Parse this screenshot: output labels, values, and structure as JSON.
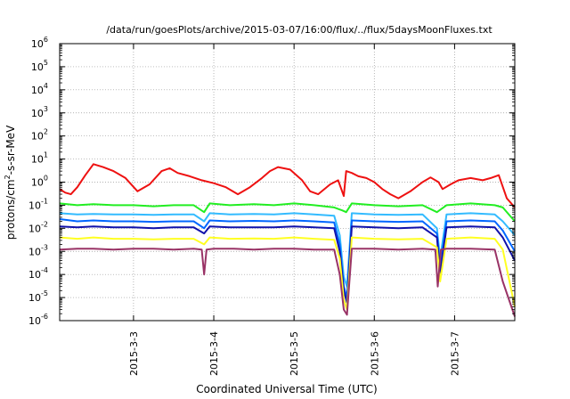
{
  "chart_data": {
    "type": "line",
    "title": "/data/run/goesPlots/archive/2015-03-07/16:00/flux/../flux/5daysMoonFluxes.txt",
    "xlabel": "Coordinated Universal Time (UTC)",
    "ylabel_base": "protons/cm",
    "ylabel_sup": "2",
    "ylabel_rest": "-s-sr-MeV",
    "y_scale": "log",
    "ylim": [
      1e-06,
      1000000.0
    ],
    "xlim": [
      2.08,
      7.75
    ],
    "x_unit": "day of March 2015",
    "grid": "dotted",
    "legend": "none",
    "y_ticks": [
      {
        "value": 1e-06,
        "base": "10",
        "exp": "-6"
      },
      {
        "value": 1e-05,
        "base": "10",
        "exp": "-5"
      },
      {
        "value": 0.0001,
        "base": "10",
        "exp": "-4"
      },
      {
        "value": 0.001,
        "base": "10",
        "exp": "-3"
      },
      {
        "value": 0.01,
        "base": "10",
        "exp": "-2"
      },
      {
        "value": 0.1,
        "base": "10",
        "exp": "-1"
      },
      {
        "value": 1.0,
        "base": "10",
        "exp": "0"
      },
      {
        "value": 10.0,
        "base": "10",
        "exp": "1"
      },
      {
        "value": 100.0,
        "base": "10",
        "exp": "2"
      },
      {
        "value": 1000.0,
        "base": "10",
        "exp": "3"
      },
      {
        "value": 10000.0,
        "base": "10",
        "exp": "4"
      },
      {
        "value": 100000.0,
        "base": "10",
        "exp": "5"
      },
      {
        "value": 1000000.0,
        "base": "10",
        "exp": "6"
      }
    ],
    "x_ticks": [
      {
        "value": 3,
        "label": "2015-3-3"
      },
      {
        "value": 4,
        "label": "2015-3-4"
      },
      {
        "value": 5,
        "label": "2015-3-5"
      },
      {
        "value": 6,
        "label": "2015-3-6"
      },
      {
        "value": 7,
        "label": "2015-3-7"
      }
    ],
    "series": [
      {
        "color": "#ee1111",
        "x": [
          2.08,
          2.15,
          2.22,
          2.3,
          2.4,
          2.5,
          2.62,
          2.75,
          2.9,
          3.05,
          3.2,
          3.35,
          3.45,
          3.55,
          3.7,
          3.85,
          4.0,
          4.15,
          4.3,
          4.45,
          4.6,
          4.7,
          4.8,
          4.95,
          5.1,
          5.2,
          5.3,
          5.45,
          5.55,
          5.62,
          5.65,
          5.72,
          5.8,
          5.9,
          6.0,
          6.1,
          6.2,
          6.3,
          6.45,
          6.6,
          6.7,
          6.8,
          6.85,
          6.95,
          7.05,
          7.2,
          7.35,
          7.45,
          7.55,
          7.65,
          7.75
        ],
        "y": [
          0.5,
          0.35,
          0.3,
          0.6,
          2.0,
          6.0,
          4.5,
          3.0,
          1.5,
          0.4,
          0.8,
          3.0,
          4.0,
          2.5,
          1.8,
          1.2,
          0.9,
          0.6,
          0.3,
          0.6,
          1.5,
          3.0,
          4.5,
          3.5,
          1.2,
          0.4,
          0.3,
          0.8,
          1.2,
          0.25,
          3.0,
          2.5,
          1.8,
          1.5,
          1.0,
          0.5,
          0.3,
          0.2,
          0.4,
          1.0,
          1.6,
          1.0,
          0.5,
          0.8,
          1.2,
          1.5,
          1.2,
          1.5,
          2.0,
          0.2,
          0.08
        ]
      },
      {
        "color": "#22ee22",
        "x": [
          2.08,
          2.3,
          2.5,
          2.75,
          3.0,
          3.25,
          3.5,
          3.75,
          3.88,
          3.95,
          4.2,
          4.5,
          4.75,
          5.0,
          5.25,
          5.5,
          5.6,
          5.65,
          5.72,
          6.0,
          6.3,
          6.6,
          6.78,
          6.9,
          7.2,
          7.5,
          7.6,
          7.75
        ],
        "y": [
          0.12,
          0.1,
          0.11,
          0.1,
          0.1,
          0.09,
          0.1,
          0.1,
          0.05,
          0.12,
          0.1,
          0.11,
          0.1,
          0.12,
          0.1,
          0.08,
          0.06,
          0.05,
          0.12,
          0.1,
          0.09,
          0.1,
          0.05,
          0.1,
          0.12,
          0.1,
          0.08,
          0.02
        ]
      },
      {
        "color": "#33bbff",
        "x": [
          2.08,
          2.3,
          2.5,
          2.75,
          3.0,
          3.25,
          3.5,
          3.75,
          3.88,
          3.95,
          4.2,
          4.5,
          4.75,
          5.0,
          5.25,
          5.5,
          5.57,
          5.62,
          5.66,
          5.72,
          6.0,
          6.3,
          6.6,
          6.78,
          6.82,
          6.9,
          7.2,
          7.5,
          7.6,
          7.75
        ],
        "y": [
          0.045,
          0.04,
          0.042,
          0.04,
          0.04,
          0.038,
          0.04,
          0.04,
          0.02,
          0.045,
          0.04,
          0.042,
          0.04,
          0.045,
          0.04,
          0.035,
          0.005,
          8e-05,
          3e-05,
          0.045,
          0.04,
          0.038,
          0.04,
          0.01,
          0.0005,
          0.04,
          0.045,
          0.04,
          0.02,
          0.005
        ]
      },
      {
        "color": "#0066ff",
        "x": [
          2.08,
          2.3,
          2.5,
          2.75,
          3.0,
          3.25,
          3.5,
          3.75,
          3.88,
          3.95,
          4.2,
          4.5,
          4.75,
          5.0,
          5.25,
          5.5,
          5.57,
          5.62,
          5.66,
          5.72,
          6.0,
          6.3,
          6.6,
          6.78,
          6.82,
          6.9,
          7.2,
          7.5,
          7.6,
          7.75
        ],
        "y": [
          0.025,
          0.02,
          0.022,
          0.02,
          0.02,
          0.019,
          0.02,
          0.02,
          0.01,
          0.022,
          0.02,
          0.021,
          0.02,
          0.022,
          0.02,
          0.018,
          0.002,
          3e-05,
          1e-05,
          0.022,
          0.02,
          0.019,
          0.02,
          0.006,
          0.0002,
          0.02,
          0.022,
          0.02,
          0.008,
          0.001
        ]
      },
      {
        "color": "#1111aa",
        "x": [
          2.08,
          2.3,
          2.5,
          2.75,
          3.0,
          3.25,
          3.5,
          3.75,
          3.88,
          3.95,
          4.2,
          4.5,
          4.75,
          5.0,
          5.25,
          5.5,
          5.57,
          5.62,
          5.66,
          5.72,
          6.0,
          6.3,
          6.6,
          6.78,
          6.82,
          6.9,
          7.2,
          7.5,
          7.6,
          7.75
        ],
        "y": [
          0.012,
          0.011,
          0.012,
          0.011,
          0.011,
          0.01,
          0.011,
          0.011,
          0.006,
          0.012,
          0.011,
          0.011,
          0.011,
          0.012,
          0.011,
          0.01,
          0.001,
          2e-05,
          6e-06,
          0.012,
          0.011,
          0.01,
          0.011,
          0.004,
          0.0001,
          0.011,
          0.012,
          0.011,
          0.004,
          0.0004
        ]
      },
      {
        "color": "#ffff22",
        "x": [
          2.08,
          2.3,
          2.5,
          2.75,
          3.0,
          3.25,
          3.5,
          3.75,
          3.88,
          3.95,
          4.2,
          4.5,
          4.75,
          5.0,
          5.25,
          5.5,
          5.57,
          5.62,
          5.66,
          5.72,
          6.0,
          6.3,
          6.6,
          6.78,
          6.82,
          6.9,
          7.2,
          7.5,
          7.6,
          7.75
        ],
        "y": [
          0.004,
          0.0035,
          0.004,
          0.0035,
          0.0035,
          0.0033,
          0.0035,
          0.0035,
          0.002,
          0.004,
          0.0035,
          0.0036,
          0.0035,
          0.004,
          0.0035,
          0.0032,
          0.0005,
          8e-06,
          3e-06,
          0.004,
          0.0035,
          0.0033,
          0.0035,
          0.0015,
          5e-05,
          0.0035,
          0.004,
          0.0035,
          0.0012,
          4e-06
        ]
      },
      {
        "color": "#993366",
        "x": [
          2.08,
          2.3,
          2.5,
          2.75,
          3.0,
          3.25,
          3.5,
          3.75,
          3.85,
          3.88,
          3.91,
          4.0,
          4.25,
          4.5,
          4.75,
          5.0,
          5.25,
          5.5,
          5.57,
          5.62,
          5.66,
          5.72,
          6.0,
          6.3,
          6.6,
          6.76,
          6.79,
          6.83,
          6.9,
          7.2,
          7.5,
          7.6,
          7.75
        ],
        "y": [
          0.0012,
          0.0013,
          0.0013,
          0.0012,
          0.0013,
          0.0013,
          0.0012,
          0.0013,
          0.0012,
          0.0001,
          0.0012,
          0.0013,
          0.0013,
          0.0012,
          0.0013,
          0.0013,
          0.0012,
          0.0012,
          0.0001,
          3e-06,
          1.8e-06,
          0.0013,
          0.0013,
          0.0012,
          0.0013,
          0.0012,
          3e-05,
          0.0012,
          0.0013,
          0.0013,
          0.0012,
          5e-05,
          1.5e-06
        ]
      }
    ]
  }
}
